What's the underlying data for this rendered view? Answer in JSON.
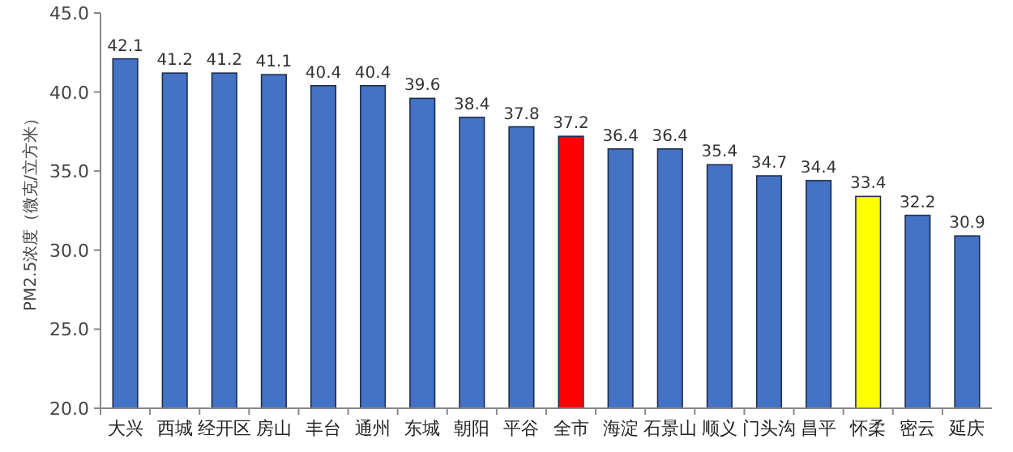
{
  "chart_data": {
    "type": "bar",
    "ylabel": "PM2.5浓度（微克/立方米）",
    "categories": [
      "大兴",
      "西城",
      "经开区",
      "房山",
      "丰台",
      "通州",
      "东城",
      "朝阳",
      "平谷",
      "全市",
      "海淀",
      "石景山",
      "顺义",
      "门头沟",
      "昌平",
      "怀柔",
      "密云",
      "延庆"
    ],
    "values": [
      42.1,
      41.2,
      41.2,
      41.1,
      40.4,
      40.4,
      39.6,
      38.4,
      37.8,
      37.2,
      36.4,
      36.4,
      35.4,
      34.7,
      34.4,
      33.4,
      32.2,
      30.9
    ],
    "colors": [
      "#4472c4",
      "#4472c4",
      "#4472c4",
      "#4472c4",
      "#4472c4",
      "#4472c4",
      "#4472c4",
      "#4472c4",
      "#4472c4",
      "#ff0000",
      "#4472c4",
      "#4472c4",
      "#4472c4",
      "#4472c4",
      "#4472c4",
      "#ffff00",
      "#4472c4",
      "#4472c4"
    ],
    "ylim": [
      20,
      45
    ],
    "yticks": [
      {
        "value": 20,
        "label": "20.0"
      },
      {
        "value": 25,
        "label": "25.0"
      },
      {
        "value": 30,
        "label": "30.0"
      },
      {
        "value": 35,
        "label": "35.0"
      },
      {
        "value": 40,
        "label": "40.0"
      },
      {
        "value": 45,
        "label": "45.0"
      }
    ],
    "data_labels": true
  }
}
